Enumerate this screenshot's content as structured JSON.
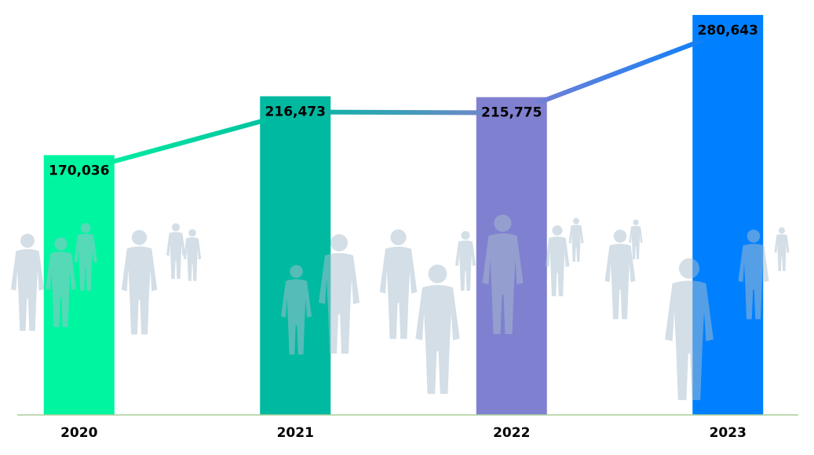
{
  "chart_data": {
    "type": "bar",
    "categories": [
      "2020",
      "2021",
      "2022",
      "2023"
    ],
    "values": [
      170036,
      216473,
      215775,
      280643
    ],
    "value_labels": [
      "170,036",
      "216,473",
      "215,775",
      "280,643"
    ],
    "colors": [
      "#00f5a0",
      "#00b9a1",
      "#8080d0",
      "#0080ff"
    ],
    "line": true,
    "ylim": [
      -35000,
      285000
    ]
  }
}
